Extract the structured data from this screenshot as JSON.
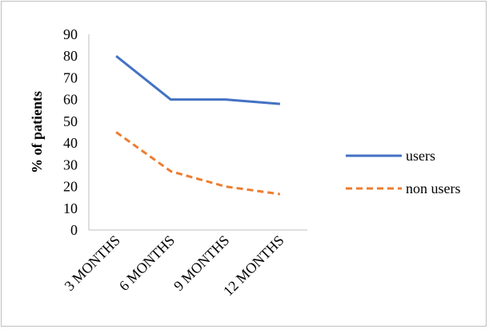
{
  "chart_data": {
    "type": "line",
    "title": "",
    "xlabel": "",
    "ylabel": "% of patients",
    "categories": [
      "3 MONTHS",
      "6 MONTHS",
      "9 MONTHS",
      "12 MONTHS"
    ],
    "ylim": [
      0,
      90
    ],
    "yticks": [
      0,
      10,
      20,
      30,
      40,
      50,
      60,
      70,
      80,
      90
    ],
    "grid": false,
    "legend_position": "right",
    "series": [
      {
        "name": "users",
        "values": [
          80,
          60,
          60,
          58
        ],
        "color": "#4472c4",
        "style": "solid"
      },
      {
        "name": "non users",
        "values": [
          45,
          27,
          20,
          16.5
        ],
        "color": "#ed7d31",
        "style": "dashed"
      }
    ]
  }
}
